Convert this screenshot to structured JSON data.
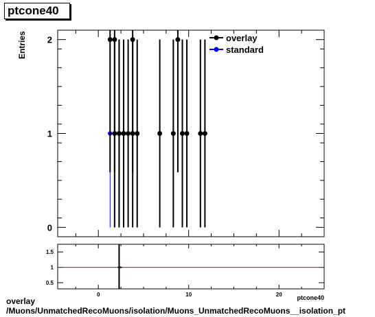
{
  "title": "ptcone40",
  "ylabel": "Entries",
  "xlabel_clipped": "ptcone40",
  "footer_line1": "overlay",
  "footer_line2": "/Muons/UnmatchedRecoMuons/isolation/Muons_UnmatchedRecoMuons__isolation_pt",
  "chart_data": {
    "type": "scatter",
    "xlim": [
      -4.5,
      25
    ],
    "ylim": [
      -0.1,
      2.1
    ],
    "y_ticks": [
      0,
      1,
      2
    ],
    "x_ticks": [
      0,
      10,
      20
    ],
    "colors": {
      "overlay": "#000000",
      "standard": "#0000ff",
      "ratio_line": "#cc0000"
    },
    "series": [
      {
        "name": "overlay",
        "x": [
          1.3,
          1.8,
          2.3,
          2.8,
          3.8,
          8.8,
          9.8,
          11.3,
          1.8,
          2.3,
          2.8,
          3.3,
          3.8,
          4.3,
          6.8,
          8.3,
          9.3,
          11.8
        ],
        "values": [
          2,
          2,
          1,
          1,
          2,
          2,
          1,
          1,
          1,
          1,
          1,
          1,
          1,
          1,
          1,
          1,
          1,
          1
        ],
        "errors": [
          1.414,
          1.414,
          1,
          1,
          1.414,
          1.414,
          1,
          1,
          1,
          1,
          1,
          1,
          1,
          1,
          1,
          1,
          1,
          1
        ]
      },
      {
        "name": "standard",
        "x": [
          1.3,
          1.8,
          2.3,
          2.8,
          3.3,
          3.8,
          4.3,
          6.8,
          8.3,
          9.3,
          11.8
        ],
        "values": [
          1,
          1,
          1,
          1,
          1,
          1,
          1,
          1,
          1,
          1,
          1
        ],
        "errors": [
          1,
          1,
          1,
          1,
          1,
          1,
          1,
          1,
          1,
          1,
          1
        ]
      }
    ],
    "ratio": {
      "ylim": [
        0.3,
        1.75
      ],
      "y_ticks": [
        0.5,
        1,
        1.5
      ],
      "y_tick_labels": [
        "0.5",
        "1",
        "1.5"
      ],
      "reference_line": 1,
      "points": [
        {
          "x": 2.3,
          "value": 1,
          "error": 1
        }
      ]
    }
  }
}
